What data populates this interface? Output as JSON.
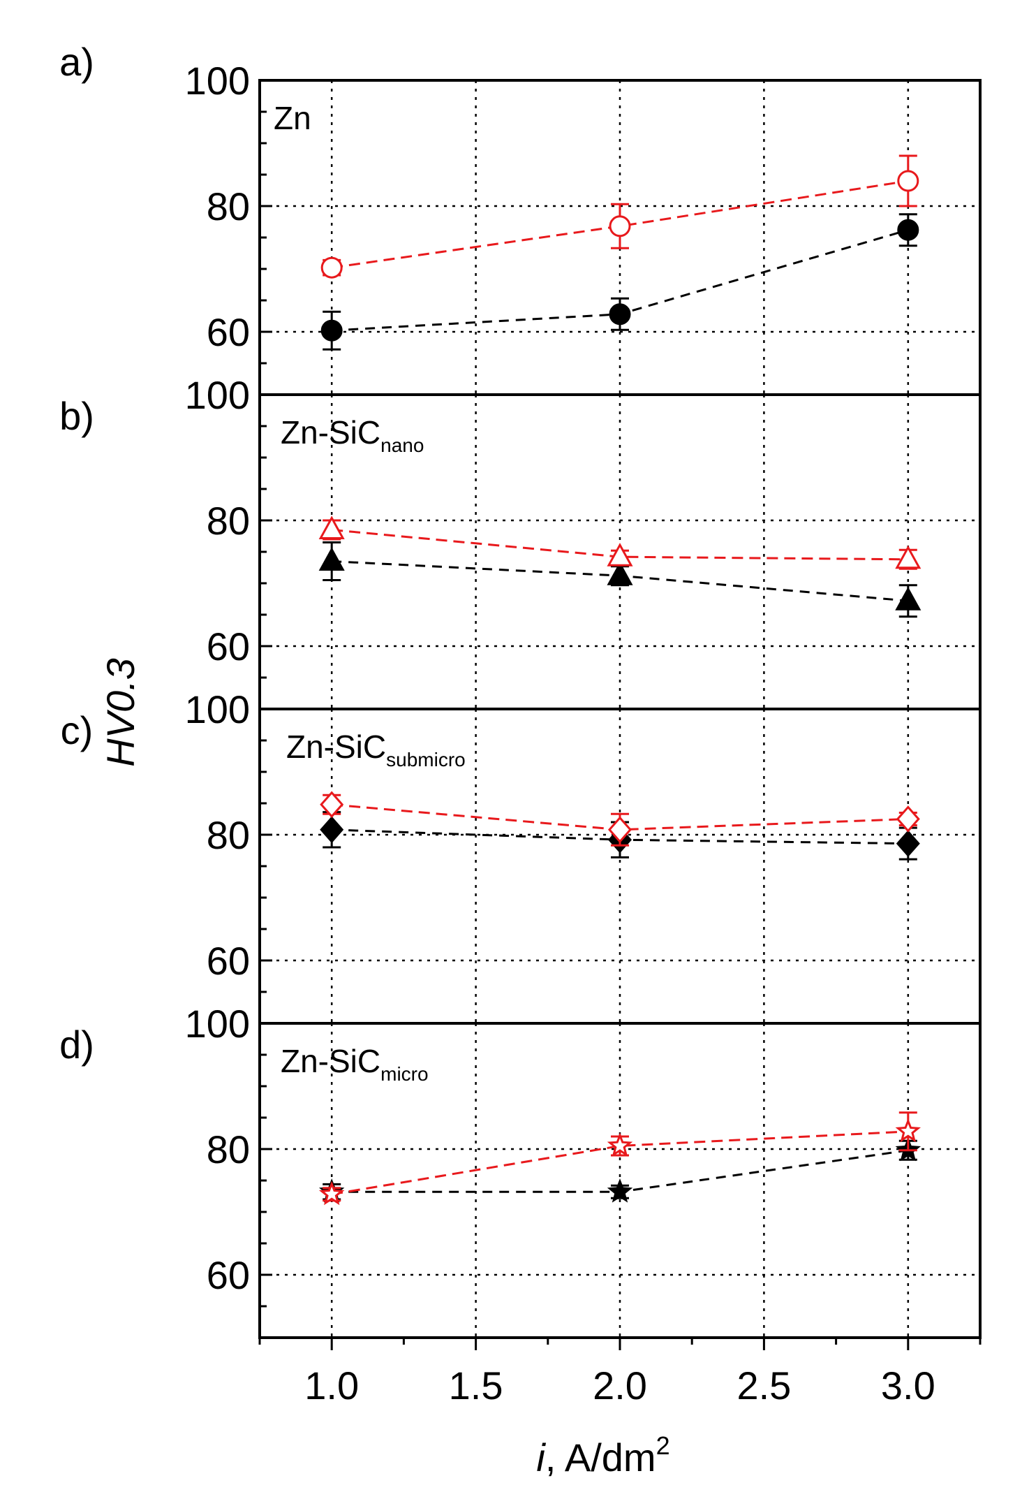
{
  "chart_data": {
    "type": "line",
    "layout": "four vertically stacked panels sharing x axis",
    "xlabel": {
      "italic": "i",
      "text": ", A/dm",
      "sup": "2"
    },
    "ylabel": "HV0.3",
    "xlim": [
      0.75,
      3.25
    ],
    "xticks": [
      "1.0",
      "1.5",
      "2.0",
      "2.5",
      "3.0"
    ],
    "ylim": [
      50,
      100
    ],
    "yticks": [
      "60",
      "80",
      "100"
    ],
    "grid": true,
    "panels": [
      {
        "letter": "a)",
        "name": "Zn",
        "sub": "",
        "marker": "circle",
        "series": [
          {
            "name": "black",
            "color": "#000000",
            "filled": true,
            "x": [
              1.0,
              2.0,
              3.0
            ],
            "y": [
              60.2,
              62.8,
              76.2
            ],
            "err": [
              3.0,
              2.5,
              2.5
            ]
          },
          {
            "name": "red",
            "color": "#e8191c",
            "filled": false,
            "x": [
              1.0,
              2.0,
              3.0
            ],
            "y": [
              70.2,
              76.8,
              84.0
            ],
            "err": [
              1.2,
              3.5,
              4.0
            ]
          }
        ]
      },
      {
        "letter": "b)",
        "name": "Zn-SiC",
        "sub": "nano",
        "marker": "triangle",
        "series": [
          {
            "name": "black",
            "color": "#000000",
            "filled": true,
            "x": [
              1.0,
              2.0,
              3.0
            ],
            "y": [
              73.5,
              71.2,
              67.2
            ],
            "err": [
              3.0,
              1.5,
              2.5
            ]
          },
          {
            "name": "red",
            "color": "#e8191c",
            "filled": false,
            "x": [
              1.0,
              2.0,
              3.0
            ],
            "y": [
              78.5,
              74.2,
              73.8
            ],
            "err": [
              1.5,
              1.0,
              1.5
            ]
          }
        ]
      },
      {
        "letter": "c)",
        "name": "Zn-SiC",
        "sub": "submicro",
        "marker": "diamond",
        "series": [
          {
            "name": "black",
            "color": "#000000",
            "filled": true,
            "x": [
              1.0,
              2.0,
              3.0
            ],
            "y": [
              80.8,
              79.2,
              78.6
            ],
            "err": [
              2.8,
              2.8,
              2.5
            ]
          },
          {
            "name": "red",
            "color": "#e8191c",
            "filled": false,
            "x": [
              1.0,
              2.0,
              3.0
            ],
            "y": [
              84.8,
              80.8,
              82.5
            ],
            "err": [
              1.5,
              2.5,
              1.0
            ]
          }
        ]
      },
      {
        "letter": "d)",
        "name": "Zn-SiC",
        "sub": "micro",
        "marker": "star",
        "series": [
          {
            "name": "black",
            "color": "#000000",
            "filled": true,
            "x": [
              1.0,
              2.0,
              3.0
            ],
            "y": [
              73.2,
              73.2,
              79.8
            ],
            "err": [
              1.2,
              1.0,
              1.5
            ]
          },
          {
            "name": "red",
            "color": "#e8191c",
            "filled": false,
            "x": [
              1.0,
              2.0,
              3.0
            ],
            "y": [
              72.8,
              80.5,
              82.8
            ],
            "err": [
              1.0,
              1.5,
              3.0
            ]
          }
        ]
      }
    ]
  }
}
